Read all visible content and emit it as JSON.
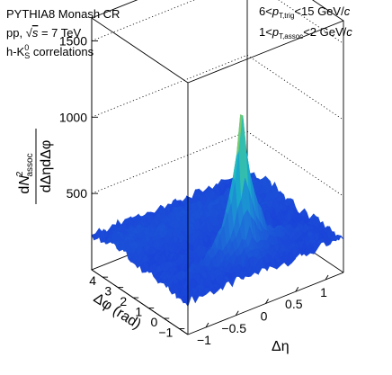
{
  "chart_data": {
    "type": "surface3d",
    "annotations": {
      "generator": "PYTHIA8 Monash CR",
      "system_prefix": "pp, ",
      "sqrt": "s",
      "energy": " = 7 TeV",
      "corr_prefix": "h-K",
      "corr_sup": "0",
      "corr_sub": "S",
      "corr_suffix": " correlations",
      "trig_lo": "6<",
      "p": "p",
      "trig_sub": "T,trig",
      "trig_hi": "<15 GeV/",
      "c": "c",
      "assoc_lo": "1<",
      "assoc_sub": "T,assoc",
      "assoc_hi": "<2 GeV/"
    },
    "zlabel": {
      "num_d": "d",
      "num_N": "N",
      "num_sup": "2",
      "num_sub": "assoc",
      "den": "dΔηdΔφ"
    },
    "xlabel": "Δη",
    "ylabel": "Δφ (rad)",
    "z_ticks": [
      "1500",
      "1000",
      "500"
    ],
    "x_ticks": [
      "−1",
      "−0.5",
      "0",
      "0.5",
      "1"
    ],
    "y_ticks": [
      "4",
      "3",
      "2",
      "1",
      "0",
      "−1"
    ],
    "zlim": [
      0,
      1650
    ],
    "xlim": [
      -1.3,
      1.3
    ],
    "ylim": [
      -1.57,
      4.71
    ],
    "surface": {
      "baseline": 220,
      "near_side_peak": {
        "deta": 0,
        "dphi": 0,
        "height": 1370
      },
      "away_side_ridge": {
        "dphi": 3.14,
        "height": 260
      },
      "colormap": [
        "#1a3fd8",
        "#1e7bd8",
        "#17b8c8",
        "#8fcf5a",
        "#f9e71e"
      ]
    },
    "grid": true
  }
}
